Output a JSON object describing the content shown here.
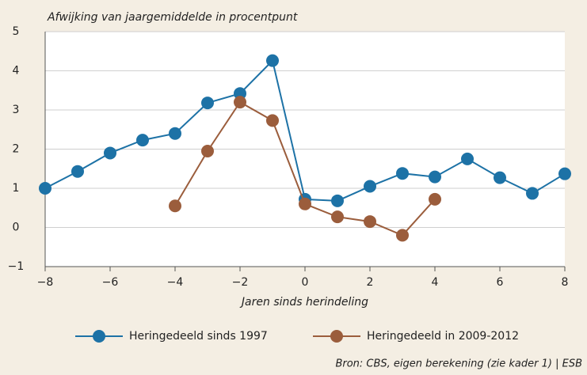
{
  "chart_data": {
    "type": "line",
    "ylabel": "Afwijking van jaargemiddelde in procentpunt",
    "xlabel": "Jaren sinds herindeling",
    "source": "Bron: CBS, eigen berekening (zie kader 1) | ESB",
    "series": [
      {
        "name": "Heringedeeld sinds 1997",
        "color": "#1d72a6",
        "x": [
          -8,
          -7,
          -6,
          -5,
          -4,
          -3,
          -2,
          -1,
          0,
          1,
          2,
          3,
          4,
          5,
          6,
          7,
          8
        ],
        "values": [
          1.0,
          1.43,
          1.9,
          2.23,
          2.4,
          3.18,
          3.42,
          4.26,
          0.72,
          0.68,
          1.05,
          1.38,
          1.29,
          1.75,
          1.27,
          0.87,
          1.37
        ]
      },
      {
        "name": "Heringedeeld in 2009-2012",
        "color": "#9b5d3c",
        "x": [
          -4,
          -3,
          -2,
          -1,
          0,
          1,
          2,
          3,
          4
        ],
        "values": [
          0.55,
          1.95,
          3.2,
          2.73,
          0.6,
          0.27,
          0.15,
          -0.2,
          0.72
        ]
      }
    ],
    "xlim": [
      -8,
      8
    ],
    "xticks": [
      {
        "value": -8,
        "label": "−8"
      },
      {
        "value": -6,
        "label": "−6"
      },
      {
        "value": -4,
        "label": "−4"
      },
      {
        "value": -2,
        "label": "−2"
      },
      0,
      2,
      4,
      6,
      8
    ],
    "ylim": [
      -1,
      5
    ],
    "yticks": [
      {
        "value": -1,
        "label": "−1"
      },
      0,
      1,
      2,
      3,
      4,
      5
    ],
    "grid": true
  }
}
